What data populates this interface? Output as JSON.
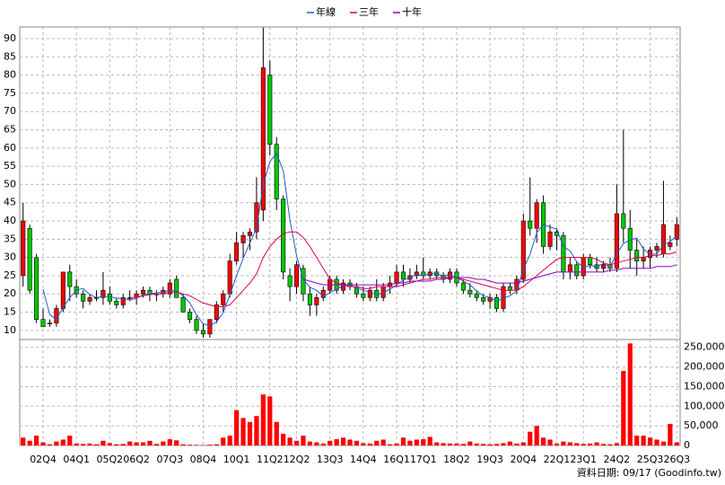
{
  "footnote": "資料日期: 09/17 (Goodinfo.tw)",
  "chart_data": [
    {
      "type": "candlestick",
      "categories": [
        null,
        null,
        null,
        "02Q4",
        null,
        null,
        null,
        null,
        "04Q1",
        null,
        null,
        null,
        null,
        "05Q2",
        null,
        null,
        null,
        "06Q2",
        null,
        null,
        null,
        null,
        "07Q3",
        null,
        null,
        null,
        null,
        "08Q4",
        null,
        null,
        null,
        null,
        "10Q1",
        null,
        null,
        null,
        null,
        "11Q2",
        null,
        null,
        null,
        "12Q2",
        null,
        null,
        null,
        null,
        "13Q3",
        null,
        null,
        null,
        null,
        "14Q4",
        null,
        null,
        null,
        null,
        "16Q1",
        null,
        null,
        null,
        "17Q1",
        null,
        null,
        null,
        null,
        "18Q2",
        null,
        null,
        null,
        null,
        "19Q3",
        null,
        null,
        null,
        null,
        "20Q4",
        null,
        null,
        null,
        null,
        "22Q1",
        null,
        null,
        null,
        "23Q1",
        null,
        null,
        null,
        null,
        "24Q2",
        null,
        null,
        null,
        null,
        "25Q3",
        null,
        null,
        null,
        "26Q3"
      ],
      "open": [
        25,
        38,
        30,
        13,
        12,
        12,
        16,
        26,
        22,
        20,
        18,
        19,
        19,
        20,
        18,
        17,
        19,
        19,
        20,
        21,
        20,
        20,
        20,
        24,
        19,
        15,
        13,
        10,
        9,
        13,
        17,
        20,
        29,
        34,
        36,
        37,
        43,
        80,
        61,
        46,
        25,
        22,
        27,
        20,
        17,
        19,
        21,
        24,
        21,
        23,
        22,
        20,
        19,
        21,
        19,
        22,
        23,
        26,
        24,
        25,
        26,
        25,
        26,
        25,
        24,
        26,
        23,
        21,
        20,
        19,
        18,
        19,
        16,
        22,
        21,
        24,
        40,
        38,
        45,
        33,
        37,
        36,
        26,
        28,
        25,
        30,
        28,
        27,
        28,
        27,
        42,
        38,
        32,
        29,
        30,
        32,
        31,
        33,
        35
      ],
      "high": [
        45,
        39,
        31,
        16,
        13,
        17,
        26,
        28,
        24,
        21,
        20,
        21,
        26,
        22,
        19,
        20,
        21,
        21,
        22,
        22,
        21,
        22,
        24,
        25,
        20,
        16,
        14,
        12,
        13,
        18,
        21,
        31,
        37,
        37,
        38,
        52,
        93,
        84,
        63,
        47,
        27,
        29,
        28,
        22,
        20,
        22,
        25,
        25,
        24,
        24,
        23,
        22,
        22,
        24,
        23,
        25,
        28,
        28,
        27,
        28,
        30,
        27,
        27,
        26,
        27,
        27,
        24,
        23,
        21,
        20,
        20,
        20,
        23,
        23,
        25,
        42,
        52,
        46,
        47,
        39,
        38,
        37,
        30,
        29,
        31,
        31,
        30,
        29,
        30,
        50,
        65,
        43,
        35,
        33,
        33,
        34,
        51,
        36,
        41
      ],
      "low": [
        22,
        20,
        12,
        11,
        11,
        11,
        15,
        18,
        19,
        16,
        17,
        18,
        17,
        17,
        16,
        16,
        18,
        17,
        19,
        18,
        18,
        19,
        19,
        19,
        15,
        12,
        9,
        8,
        8,
        12,
        15,
        19,
        28,
        30,
        32,
        35,
        40,
        58,
        43,
        24,
        18,
        20,
        18,
        14,
        14,
        18,
        20,
        20,
        20,
        21,
        19,
        18,
        18,
        18,
        18,
        20,
        22,
        22,
        23,
        24,
        24,
        24,
        24,
        23,
        23,
        22,
        20,
        19,
        18,
        17,
        16,
        15,
        15,
        20,
        20,
        23,
        36,
        34,
        31,
        32,
        32,
        24,
        24,
        24,
        24,
        27,
        26,
        26,
        26,
        26,
        34,
        27,
        25,
        27,
        27,
        30,
        30,
        32,
        33
      ],
      "close": [
        40,
        21,
        13,
        11,
        12,
        16,
        26,
        22,
        20,
        18,
        19,
        19,
        21,
        18,
        17,
        19,
        19,
        20,
        21,
        20,
        20,
        21,
        23,
        19,
        15,
        13,
        10,
        9,
        13,
        17,
        20,
        29,
        34,
        36,
        37,
        45,
        82,
        61,
        46,
        26,
        22,
        28,
        20,
        17,
        19,
        21,
        24,
        21,
        23,
        22,
        20,
        19,
        21,
        19,
        22,
        23,
        26,
        24,
        25,
        26,
        25,
        26,
        25,
        24,
        26,
        23,
        21,
        20,
        19,
        18,
        19,
        16,
        22,
        21,
        24,
        40,
        38,
        45,
        33,
        37,
        36,
        26,
        28,
        25,
        30,
        28,
        27,
        28,
        27,
        42,
        38,
        32,
        29,
        30,
        32,
        33,
        39,
        34,
        39
      ],
      "rise_color": "#ff0000",
      "fall_color": "#00c800",
      "series": [
        {
          "name": "年線",
          "color": "#1a5fd0",
          "values": [
            null,
            null,
            null,
            21.3,
            14.3,
            13,
            16.3,
            19,
            21,
            21.5,
            19.8,
            19,
            19.3,
            19.3,
            18.8,
            18.8,
            18.3,
            18.8,
            19.8,
            20,
            20.3,
            20.5,
            21,
            20.8,
            19.5,
            17.5,
            14.3,
            11.8,
            11.3,
            12.3,
            14.8,
            19.8,
            25,
            29.8,
            34,
            38,
            50,
            56.3,
            58.5,
            53.8,
            40.3,
            30.5,
            24,
            21.8,
            21,
            19.3,
            20.3,
            21.3,
            22.3,
            22.5,
            21.5,
            21,
            20.5,
            19.8,
            20.3,
            21.3,
            22.5,
            23.8,
            24.5,
            25.3,
            25,
            25.5,
            25.5,
            25,
            25.3,
            24.5,
            23.5,
            22.5,
            20.8,
            19.5,
            19,
            18,
            18.8,
            19.5,
            20.8,
            26.8,
            30.8,
            36.8,
            39,
            38.3,
            37.8,
            33,
            31.8,
            28.8,
            27.3,
            27.8,
            27.5,
            28.3,
            27.5,
            31,
            33.8,
            34.8,
            35.3,
            32.3,
            30.8,
            31,
            33.5,
            34.3,
            36
          ]
        },
        {
          "name": "三年",
          "color": "#e0004a",
          "values": [
            null,
            null,
            null,
            null,
            null,
            null,
            null,
            null,
            null,
            null,
            null,
            null,
            null,
            null,
            null,
            null,
            19,
            19,
            19.5,
            19.8,
            20,
            20,
            20.5,
            20.5,
            20,
            19.5,
            18.5,
            17.5,
            17,
            16.5,
            16.5,
            17,
            19,
            21,
            23,
            25.5,
            30,
            33,
            35,
            36.5,
            37,
            37,
            35.5,
            33,
            30,
            27,
            24,
            23,
            22.5,
            22,
            22,
            21.5,
            21.5,
            22,
            22,
            22,
            22,
            22.5,
            23,
            23.5,
            24,
            24,
            24.5,
            24.5,
            24.5,
            24.5,
            24,
            23.5,
            23,
            22.5,
            22,
            21.5,
            21,
            21,
            21,
            22,
            23.5,
            25,
            26.5,
            28,
            29.5,
            30,
            30,
            30,
            30,
            30,
            29.5,
            28.5,
            28,
            28.5,
            29,
            29.5,
            30,
            30,
            30.5,
            30.5,
            31,
            31,
            31.5
          ]
        },
        {
          "name": "十年",
          "color": "#8a00c8",
          "values": [
            null,
            null,
            null,
            null,
            null,
            null,
            null,
            null,
            null,
            null,
            null,
            null,
            null,
            null,
            null,
            null,
            null,
            null,
            null,
            null,
            null,
            null,
            null,
            null,
            null,
            null,
            null,
            null,
            null,
            null,
            null,
            null,
            null,
            null,
            null,
            null,
            null,
            null,
            null,
            null,
            null,
            null,
            24,
            23.5,
            23,
            22.5,
            22.5,
            22.5,
            22.5,
            22.5,
            22.5,
            22.5,
            22.5,
            22.5,
            22.5,
            22.5,
            23,
            23,
            23.5,
            23.5,
            23.5,
            23.5,
            24,
            24,
            24.5,
            24.5,
            24.5,
            24.5,
            24,
            24,
            23.5,
            23,
            23,
            23,
            23,
            23.5,
            24,
            24.5,
            25,
            25.5,
            26,
            26,
            26,
            26,
            26,
            26,
            26,
            26,
            26.5,
            26.5,
            27,
            27,
            27,
            27,
            27,
            27.5,
            27.5,
            27.5,
            28
          ]
        }
      ],
      "ylim": [
        7.5,
        93.2
      ],
      "yticks": [
        10,
        15,
        20,
        25,
        30,
        35,
        40,
        45,
        50,
        55,
        60,
        65,
        70,
        75,
        80,
        85,
        90
      ],
      "grid": true
    },
    {
      "type": "bar",
      "color": "#ff0000",
      "values": [
        20000,
        12000,
        25000,
        8000,
        3000,
        10000,
        15000,
        25000,
        5000,
        4000,
        5000,
        3000,
        12000,
        6000,
        3000,
        4000,
        10000,
        8000,
        8000,
        12000,
        4000,
        10000,
        16000,
        13000,
        3000,
        2000,
        1500,
        1000,
        2000,
        3000,
        20000,
        25000,
        90000,
        70000,
        60000,
        75000,
        130000,
        125000,
        60000,
        30000,
        20000,
        12000,
        25000,
        10000,
        8000,
        5000,
        12000,
        16000,
        20000,
        15000,
        12000,
        6000,
        5000,
        12000,
        15000,
        3000,
        5000,
        20000,
        12000,
        15000,
        16000,
        22000,
        8000,
        6000,
        5000,
        5000,
        4000,
        10000,
        5000,
        4000,
        3000,
        4000,
        6000,
        10000,
        5000,
        8000,
        35000,
        50000,
        20000,
        15000,
        5000,
        10000,
        8000,
        6000,
        4000,
        5000,
        8000,
        4000,
        3000,
        6000,
        190000,
        260000,
        25000,
        25000,
        20000,
        15000,
        10000,
        55000,
        8000
      ],
      "ylim": [
        0,
        270000
      ],
      "yticks": [
        0,
        {
          "value": 50000,
          "label": "50,000"
        },
        {
          "value": 100000,
          "label": "100,000"
        },
        {
          "value": 150000,
          "label": "150,000"
        },
        {
          "value": 200000,
          "label": "200,000"
        },
        {
          "value": 250000,
          "label": "250,000"
        }
      ],
      "grid": true
    }
  ]
}
